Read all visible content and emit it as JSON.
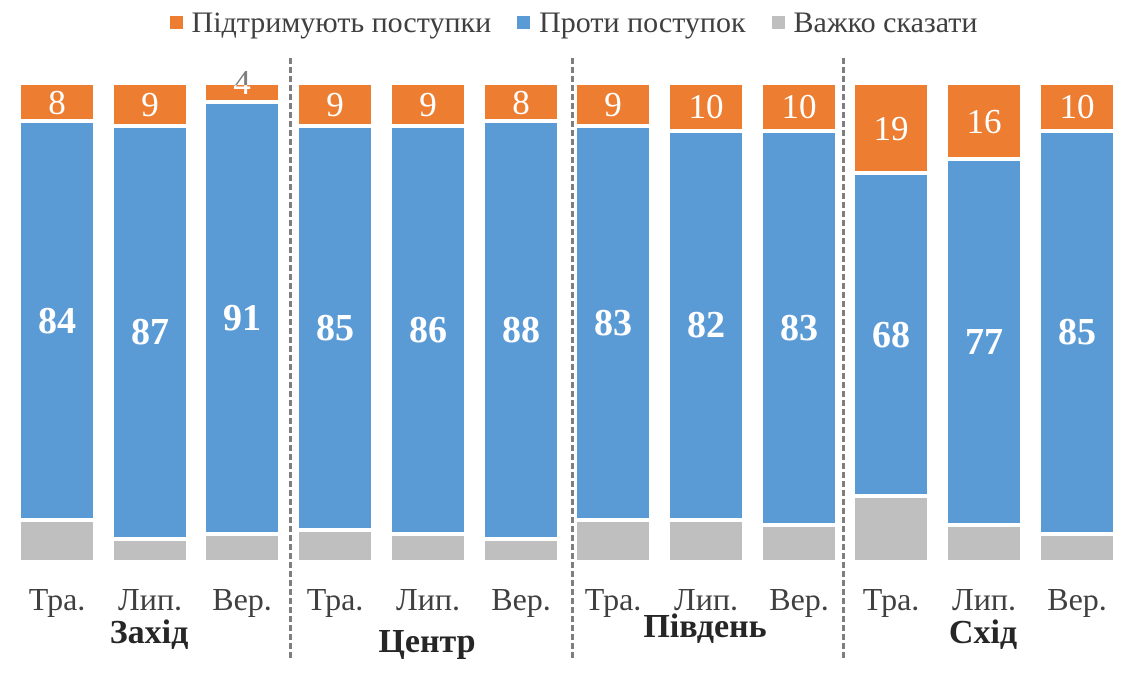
{
  "legend": {
    "items": [
      {
        "key": "support",
        "label": "Підтримують поступки",
        "color": "#ED7D31"
      },
      {
        "key": "against",
        "label": "Проти поступок",
        "color": "#5B9BD5"
      },
      {
        "key": "undecided",
        "label": "Важко сказати",
        "color": "#BFBFBF"
      }
    ]
  },
  "chart_data": {
    "type": "bar",
    "variant": "stacked-percent",
    "unit": "%",
    "stack_total": 100,
    "legend_position": "top",
    "grid": false,
    "axes_visible": false,
    "value_labels": {
      "support": "inside-white",
      "against": "inside-white-bold",
      "undecided": "none"
    },
    "categories": [
      "Тра.",
      "Лип.",
      "Вер."
    ],
    "groups": [
      {
        "label": "Захід",
        "bars": [
          {
            "category": "Тра.",
            "support": 8,
            "against": 84,
            "undecided": 8
          },
          {
            "category": "Лип.",
            "support": 9,
            "against": 87,
            "undecided": 4
          },
          {
            "category": "Вер.",
            "support": 4,
            "against": 91,
            "undecided": 5
          }
        ]
      },
      {
        "label": "Центр",
        "bars": [
          {
            "category": "Тра.",
            "support": 9,
            "against": 85,
            "undecided": 6
          },
          {
            "category": "Лип.",
            "support": 9,
            "against": 86,
            "undecided": 5
          },
          {
            "category": "Вер.",
            "support": 8,
            "against": 88,
            "undecided": 4
          }
        ]
      },
      {
        "label": "Південь",
        "bars": [
          {
            "category": "Тра.",
            "support": 9,
            "against": 83,
            "undecided": 8
          },
          {
            "category": "Лип.",
            "support": 10,
            "against": 82,
            "undecided": 8
          },
          {
            "category": "Вер.",
            "support": 10,
            "against": 83,
            "undecided": 7
          }
        ]
      },
      {
        "label": "Схід",
        "bars": [
          {
            "category": "Тра.",
            "support": 19,
            "against": 68,
            "undecided": 13
          },
          {
            "category": "Лип.",
            "support": 16,
            "against": 77,
            "undecided": 7
          },
          {
            "category": "Вер.",
            "support": 10,
            "against": 85,
            "undecided": 5
          }
        ]
      }
    ],
    "series": [
      {
        "name": "Підтримують поступки",
        "color": "#ED7D31",
        "values": [
          8,
          9,
          4,
          9,
          9,
          8,
          9,
          10,
          10,
          19,
          16,
          10
        ]
      },
      {
        "name": "Проти поступок",
        "color": "#5B9BD5",
        "values": [
          84,
          87,
          91,
          85,
          86,
          88,
          83,
          82,
          83,
          68,
          77,
          85
        ]
      },
      {
        "name": "Важко сказати",
        "color": "#BFBFBF",
        "values": [
          8,
          4,
          5,
          6,
          5,
          4,
          8,
          8,
          7,
          13,
          7,
          5
        ]
      }
    ]
  },
  "colors": {
    "support": "#ED7D31",
    "against": "#5B9BD5",
    "undecided": "#BFBFBF",
    "separator": "#7F7F7F",
    "axis_text": "#404040",
    "group_label_text": "#262626",
    "value_label_text": "#FFFFFF",
    "outside_label_text": "#7F7F7F",
    "background": "#FFFFFF"
  }
}
